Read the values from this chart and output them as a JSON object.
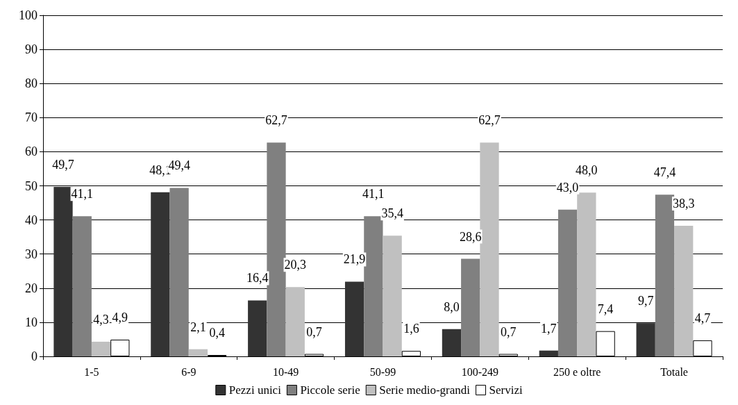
{
  "chart_data": {
    "type": "bar",
    "categories": [
      "1-5",
      "6-9",
      "10-49",
      "50-99",
      "100-249",
      "250 e oltre",
      "Totale"
    ],
    "series": [
      {
        "name": "Pezzi unici",
        "color": "#333333",
        "values": [
          49.7,
          48.1,
          16.4,
          21.9,
          8.0,
          1.7,
          9.7
        ],
        "value_labels": [
          "49,7",
          "48,1",
          "16,4",
          "21,9",
          "8,0",
          "1,7",
          "9,7"
        ]
      },
      {
        "name": "Piccole serie",
        "color": "#808080",
        "values": [
          41.1,
          49.4,
          62.7,
          41.1,
          28.6,
          43.0,
          47.4
        ],
        "value_labels": [
          "41,1",
          "49,4",
          "62,7",
          "41,1",
          "28,6",
          "43,0",
          "47,4"
        ]
      },
      {
        "name": "Serie medio-grandi",
        "color": "#c0c0c0",
        "values": [
          4.3,
          2.1,
          20.3,
          35.4,
          62.7,
          48.0,
          38.3
        ],
        "value_labels": [
          "4,3",
          "2,1",
          "20,3",
          "35,4",
          "62,7",
          "48,0",
          "38,3"
        ]
      },
      {
        "name": "Servizi",
        "color": "#ffffff",
        "values": [
          4.9,
          0.4,
          0.7,
          1.6,
          0.7,
          7.4,
          4.7
        ],
        "value_labels": [
          "4,9",
          "0,4",
          "0,7",
          "1,6",
          "0,7",
          "7,4",
          "4,7"
        ]
      }
    ],
    "ylim": [
      0,
      100
    ],
    "yticks": [
      0,
      10,
      20,
      30,
      40,
      50,
      60,
      70,
      80,
      90,
      100
    ],
    "grid": "y",
    "legend": "bottom"
  }
}
